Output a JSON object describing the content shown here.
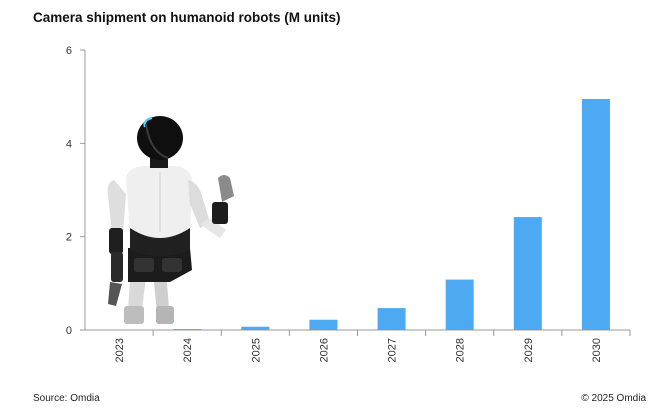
{
  "chart_data": {
    "type": "bar",
    "title": "Camera shipment on humanoid robots (M units)",
    "categories": [
      "2023",
      "2024",
      "2025",
      "2026",
      "2027",
      "2028",
      "2029",
      "2030"
    ],
    "values": [
      0.0,
      0.02,
      0.07,
      0.22,
      0.47,
      1.08,
      2.42,
      4.95
    ],
    "yticks": [
      "0",
      "2",
      "4",
      "6"
    ],
    "ylim": [
      0,
      6
    ],
    "xlabel": "",
    "ylabel": "",
    "grid": false,
    "bar_color": "#4daaf2"
  },
  "footer": {
    "source": "Source: Omdia",
    "copyright": "© 2025 Omdia"
  },
  "illustration": {
    "icon": "humanoid-robot-icon"
  }
}
